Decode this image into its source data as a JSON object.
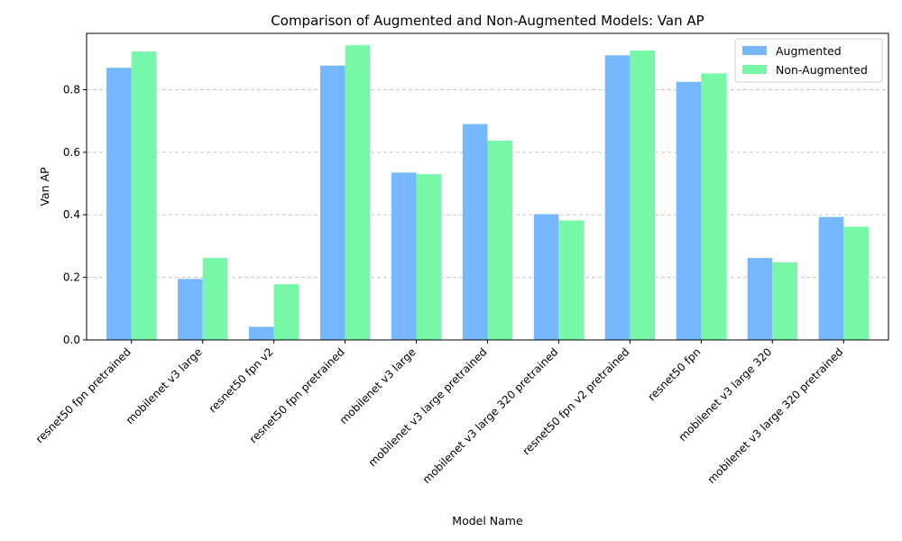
{
  "chart_data": {
    "type": "bar",
    "title": "Comparison of Augmented and Non-Augmented Models: Van AP",
    "xlabel": "Model Name",
    "ylabel": "Van AP",
    "ylim": [
      0,
      0.98
    ],
    "yticks": [
      0.0,
      0.2,
      0.4,
      0.6,
      0.8
    ],
    "ytick_labels": [
      "0.0",
      "0.2",
      "0.4",
      "0.6",
      "0.8"
    ],
    "grid": "y-dashed",
    "legend_position": "top-right",
    "categories": [
      "resnet50 fpn pretrained",
      "mobilenet v3 large",
      "resnet50 fpn v2",
      "resnet50 fpn pretrained",
      "mobilenet v3 large",
      "mobilenet v3 large pretrained",
      "mobilenet v3 large 320 pretrained",
      "resnet50 fpn v2 pretrained",
      "resnet50 fpn",
      "mobilenet v3 large 320",
      "mobilenet v3 large 320 pretrained"
    ],
    "series": [
      {
        "name": "Augmented",
        "color": "#76b8ff",
        "values": [
          0.87,
          0.195,
          0.042,
          0.877,
          0.535,
          0.69,
          0.402,
          0.91,
          0.825,
          0.262,
          0.393
        ]
      },
      {
        "name": "Non-Augmented",
        "color": "#77f8a8",
        "values": [
          0.922,
          0.262,
          0.178,
          0.942,
          0.53,
          0.637,
          0.382,
          0.925,
          0.852,
          0.248,
          0.362
        ]
      }
    ]
  }
}
